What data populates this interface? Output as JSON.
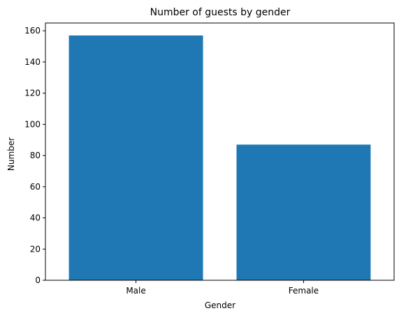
{
  "chart_data": {
    "type": "bar",
    "title": "Number of guests by gender",
    "xlabel": "Gender",
    "ylabel": "Number",
    "categories": [
      "Male",
      "Female"
    ],
    "values": [
      157,
      87
    ],
    "ylim": [
      0,
      165
    ],
    "yticks": [
      0,
      20,
      40,
      60,
      80,
      100,
      120,
      140,
      160
    ],
    "grid": false,
    "legend": "none",
    "bar_color": "#1f77b4"
  }
}
